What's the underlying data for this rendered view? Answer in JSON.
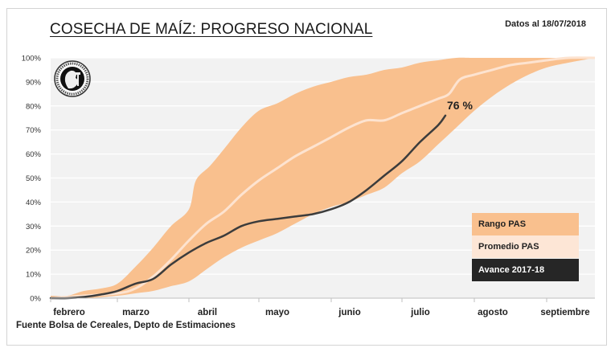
{
  "header": {
    "title": "COSECHA DE MAÍZ: PROGRESO NACIONAL",
    "date_note": "Datos al 18/07/2018"
  },
  "footer": {
    "source": "Fuente Bolsa de Cereales, Depto de Estimaciones"
  },
  "logo": {
    "icon": "institution-seal-icon"
  },
  "colors": {
    "range": "#f9c08e",
    "average": "#fde3d0",
    "current": "#3c3c3c",
    "plot_bg": "#f2f2f2",
    "grid": "#ffffff"
  },
  "legend": {
    "items": [
      {
        "label": "Rango PAS",
        "color": "#f9c08e",
        "text_color": "#222222"
      },
      {
        "label": "Promedio PAS",
        "color": "#fde6d6",
        "text_color": "#222222"
      },
      {
        "label": "Avance 2017-18",
        "color": "#262626",
        "text_color": "#ffffff"
      }
    ]
  },
  "chart_data": {
    "type": "area",
    "title": "COSECHA DE MAÍZ: PROGRESO NACIONAL",
    "xlabel": "",
    "ylabel": "",
    "categories": [
      "febrero",
      "marzo",
      "abril",
      "mayo",
      "junio",
      "julio",
      "agosto",
      "septiembre"
    ],
    "y_ticks": [
      "0%",
      "10%",
      "20%",
      "30%",
      "40%",
      "50%",
      "60%",
      "70%",
      "80%",
      "90%",
      "100%"
    ],
    "ylim": [
      0,
      100
    ],
    "xlim_months": [
      0,
      7.7
    ],
    "grid": "horizontal",
    "legend_position": "bottom-right",
    "annotation": {
      "text": "76 %",
      "x": 5.6,
      "y": 76
    },
    "series": [
      {
        "name": "Rango PAS (máximo)",
        "x": [
          0,
          0.25,
          0.5,
          0.75,
          1.0,
          1.25,
          1.5,
          1.75,
          2.0,
          2.1,
          2.3,
          2.5,
          2.75,
          3.0,
          3.25,
          3.5,
          3.75,
          4.0,
          4.25,
          4.5,
          4.75,
          5.0,
          5.25,
          5.5,
          5.75,
          6.0,
          6.5,
          7.0,
          7.7
        ],
        "values": [
          1,
          1,
          3,
          4,
          6,
          13,
          21,
          30,
          37,
          49,
          55,
          62,
          71,
          78,
          81,
          85,
          88,
          90,
          92,
          93,
          95,
          96,
          98,
          99,
          100,
          100,
          100,
          100,
          100
        ]
      },
      {
        "name": "Rango PAS (mínimo)",
        "x": [
          0,
          0.5,
          1.0,
          1.25,
          1.5,
          1.75,
          2.0,
          2.25,
          2.5,
          2.75,
          3.0,
          3.25,
          3.5,
          3.75,
          4.0,
          4.25,
          4.5,
          4.75,
          5.0,
          5.25,
          5.5,
          5.75,
          6.0,
          6.25,
          6.5,
          6.75,
          7.0,
          7.3,
          7.7
        ],
        "values": [
          0,
          0,
          1,
          2,
          3,
          5,
          7,
          12,
          17,
          21,
          24,
          27,
          31,
          35,
          38,
          40,
          43,
          46,
          52,
          57,
          64,
          71,
          78,
          84,
          89,
          93,
          96,
          98,
          100
        ]
      },
      {
        "name": "Promedio PAS",
        "x": [
          0,
          0.5,
          1.0,
          1.25,
          1.5,
          1.75,
          2.0,
          2.25,
          2.5,
          2.75,
          3.0,
          3.25,
          3.5,
          3.75,
          4.0,
          4.25,
          4.5,
          4.75,
          5.0,
          5.25,
          5.5,
          5.65,
          5.8,
          6.0,
          6.25,
          6.5,
          6.75,
          7.0,
          7.3,
          7.7
        ],
        "values": [
          0,
          1,
          2,
          4,
          9,
          16,
          24,
          31,
          36,
          43,
          49,
          54,
          59,
          63,
          67,
          71,
          74,
          74,
          77,
          80,
          83,
          85,
          91,
          93,
          95,
          97,
          98,
          99,
          100,
          100
        ]
      },
      {
        "name": "Avance 2017-18",
        "x": [
          0,
          0.25,
          0.5,
          0.75,
          1.0,
          1.25,
          1.5,
          1.75,
          2.0,
          2.25,
          2.5,
          2.75,
          3.0,
          3.25,
          3.5,
          3.75,
          4.0,
          4.25,
          4.5,
          4.75,
          5.0,
          5.25,
          5.5,
          5.6
        ],
        "values": [
          0,
          0,
          0.5,
          1.5,
          3,
          6,
          8,
          14,
          19,
          23,
          26,
          30,
          32,
          33,
          34,
          35,
          37,
          40,
          45,
          51,
          57,
          65,
          72,
          76
        ]
      }
    ]
  }
}
